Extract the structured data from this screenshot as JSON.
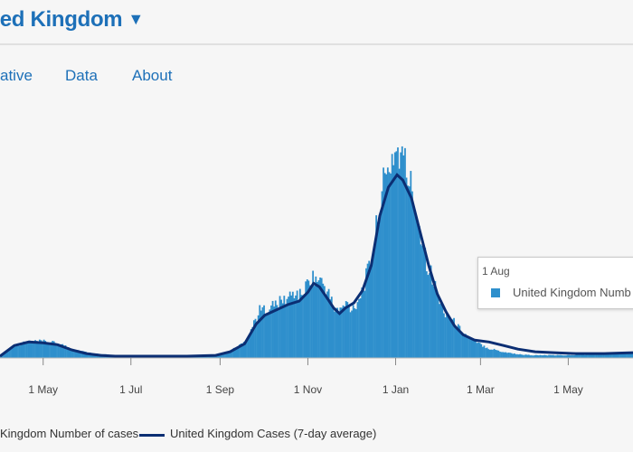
{
  "header": {
    "title": "ted Kingdom",
    "caret": "▼"
  },
  "tabs": [
    {
      "label": "ative"
    },
    {
      "label": "Data"
    },
    {
      "label": "About"
    }
  ],
  "tooltip": {
    "date": "1 Aug",
    "series_label": "United Kingdom Numb"
  },
  "legend": {
    "bars_label": "Kingdom Number of cases",
    "line_label": "United Kingdom Cases (7-day average)"
  },
  "colors": {
    "bars": "#2e8fcc",
    "line": "#0b2e73"
  },
  "chart_data": {
    "type": "bar",
    "x_tick_labels": [
      "1 May",
      "1 Jul",
      "1 Sep",
      "1 Nov",
      "1 Jan",
      "1 Mar",
      "1 May"
    ],
    "x_range_days": [
      0,
      440
    ],
    "tick_days": [
      30,
      91,
      153,
      214,
      275,
      334,
      395
    ],
    "series": [
      {
        "name": "Number of cases",
        "kind": "bar",
        "points": [
          [
            0,
            2
          ],
          [
            10,
            14
          ],
          [
            20,
            18
          ],
          [
            30,
            18
          ],
          [
            40,
            16
          ],
          [
            50,
            10
          ],
          [
            60,
            6
          ],
          [
            70,
            4
          ],
          [
            80,
            3
          ],
          [
            91,
            2
          ],
          [
            100,
            2
          ],
          [
            110,
            2
          ],
          [
            120,
            2
          ],
          [
            130,
            2
          ],
          [
            140,
            2
          ],
          [
            150,
            3
          ],
          [
            160,
            8
          ],
          [
            170,
            18
          ],
          [
            180,
            52
          ],
          [
            184,
            54
          ],
          [
            188,
            57
          ],
          [
            192,
            59
          ],
          [
            196,
            63
          ],
          [
            200,
            66
          ],
          [
            204,
            72
          ],
          [
            208,
            68
          ],
          [
            212,
            78
          ],
          [
            216,
            88
          ],
          [
            220,
            86
          ],
          [
            224,
            82
          ],
          [
            228,
            70
          ],
          [
            232,
            54
          ],
          [
            236,
            52
          ],
          [
            240,
            60
          ],
          [
            244,
            54
          ],
          [
            248,
            62
          ],
          [
            252,
            78
          ],
          [
            256,
            98
          ],
          [
            260,
            128
          ],
          [
            264,
            178
          ],
          [
            268,
            196
          ],
          [
            272,
            222
          ],
          [
            276,
            228
          ],
          [
            280,
            216
          ],
          [
            284,
            195
          ],
          [
            288,
            168
          ],
          [
            292,
            138
          ],
          [
            296,
            108
          ],
          [
            300,
            88
          ],
          [
            304,
            66
          ],
          [
            308,
            52
          ],
          [
            312,
            44
          ],
          [
            316,
            38
          ],
          [
            320,
            30
          ],
          [
            324,
            24
          ],
          [
            328,
            20
          ],
          [
            332,
            16
          ],
          [
            336,
            13
          ],
          [
            340,
            10
          ],
          [
            344,
            9
          ],
          [
            348,
            7
          ],
          [
            352,
            6
          ],
          [
            356,
            5
          ],
          [
            360,
            4
          ],
          [
            370,
            3
          ],
          [
            380,
            3
          ],
          [
            395,
            3
          ],
          [
            410,
            4
          ],
          [
            425,
            5
          ],
          [
            440,
            6
          ]
        ]
      },
      {
        "name": "Cases (7-day average)",
        "kind": "line",
        "points": [
          [
            0,
            2
          ],
          [
            10,
            14
          ],
          [
            20,
            18
          ],
          [
            30,
            17
          ],
          [
            40,
            15
          ],
          [
            50,
            9
          ],
          [
            60,
            5
          ],
          [
            70,
            3
          ],
          [
            80,
            2
          ],
          [
            91,
            2
          ],
          [
            110,
            2
          ],
          [
            130,
            2
          ],
          [
            150,
            3
          ],
          [
            160,
            7
          ],
          [
            170,
            16
          ],
          [
            178,
            38
          ],
          [
            184,
            48
          ],
          [
            192,
            54
          ],
          [
            200,
            60
          ],
          [
            208,
            64
          ],
          [
            214,
            74
          ],
          [
            218,
            84
          ],
          [
            222,
            80
          ],
          [
            228,
            66
          ],
          [
            232,
            56
          ],
          [
            236,
            50
          ],
          [
            240,
            56
          ],
          [
            246,
            62
          ],
          [
            252,
            76
          ],
          [
            258,
            104
          ],
          [
            264,
            160
          ],
          [
            270,
            192
          ],
          [
            276,
            206
          ],
          [
            280,
            200
          ],
          [
            286,
            180
          ],
          [
            292,
            142
          ],
          [
            298,
            104
          ],
          [
            304,
            72
          ],
          [
            310,
            52
          ],
          [
            316,
            36
          ],
          [
            322,
            26
          ],
          [
            330,
            20
          ],
          [
            340,
            18
          ],
          [
            350,
            14
          ],
          [
            360,
            10
          ],
          [
            372,
            7
          ],
          [
            385,
            6
          ],
          [
            400,
            5
          ],
          [
            420,
            5
          ],
          [
            440,
            6
          ]
        ]
      }
    ],
    "ylim": [
      0,
      240
    ]
  }
}
